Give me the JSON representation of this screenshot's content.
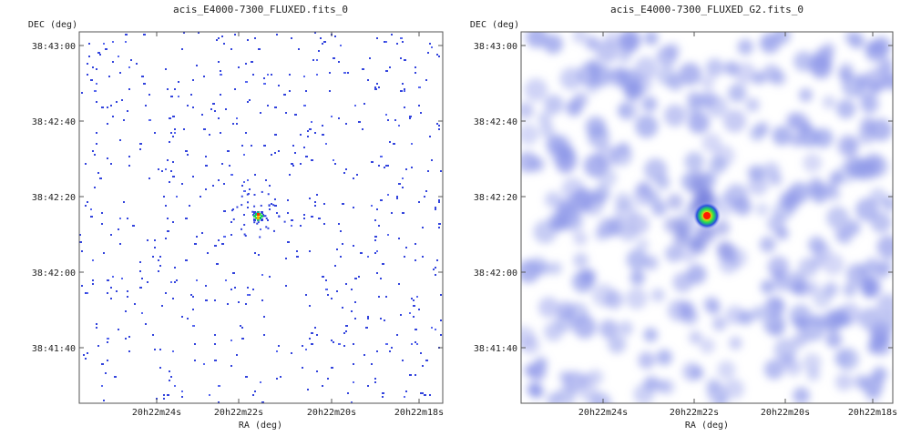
{
  "panels": [
    {
      "title": "acis_E4000-7300_FLUXED.fits_0",
      "ylabel": "DEC (deg)",
      "xlabel": "RA (deg)",
      "yticks": [
        "38:43:00",
        "38:42:40",
        "38:42:20",
        "38:42:00",
        "38:41:40"
      ],
      "xticks": [
        "20h22m24s",
        "20h22m22s",
        "20h22m20s",
        "20h22m18s"
      ],
      "style": "raw-events",
      "source_marker": "bright point source (raw)"
    },
    {
      "title": "acis_E4000-7300_FLUXED_G2.fits_0",
      "ylabel": "DEC (deg)",
      "xlabel": "RA (deg)",
      "yticks": [
        "38:43:00",
        "38:42:40",
        "38:42:20",
        "38:42:00",
        "38:41:40"
      ],
      "xticks": [
        "20h22m24s",
        "20h22m22s",
        "20h22m20s",
        "20h22m18s"
      ],
      "style": "gaussian-smoothed",
      "source_marker": "bright point source (smoothed)"
    }
  ],
  "chart_data": [
    {
      "type": "heatmap",
      "title": "acis_E4000-7300_FLUXED.fits_0",
      "xlabel": "RA (deg)",
      "ylabel": "DEC (deg)",
      "x_tick_labels": [
        "20h22m24s",
        "20h22m22s",
        "20h22m20s",
        "20h22m18s"
      ],
      "y_tick_labels": [
        "38:43:00",
        "38:42:40",
        "38:42:20",
        "38:42:00",
        "38:41:40"
      ],
      "source": {
        "ra": "20h22m21.8s",
        "dec": "38:42:15"
      },
      "colormap": [
        "#ffffff",
        "#3344dd",
        "#00cc66",
        "#ffee00",
        "#ff2200"
      ]
    },
    {
      "type": "heatmap",
      "title": "acis_E4000-7300_FLUXED_G2.fits_0",
      "xlabel": "RA (deg)",
      "ylabel": "DEC (deg)",
      "x_tick_labels": [
        "20h22m24s",
        "20h22m22s",
        "20h22m20s",
        "20h22m18s"
      ],
      "y_tick_labels": [
        "38:43:00",
        "38:42:40",
        "38:42:20",
        "38:42:00",
        "38:41:40"
      ],
      "source": {
        "ra": "20h22m21.8s",
        "dec": "38:42:15"
      },
      "colormap": [
        "#ffffff",
        "#9fa8f0",
        "#00cc66",
        "#ffee00",
        "#ff2200"
      ]
    }
  ]
}
